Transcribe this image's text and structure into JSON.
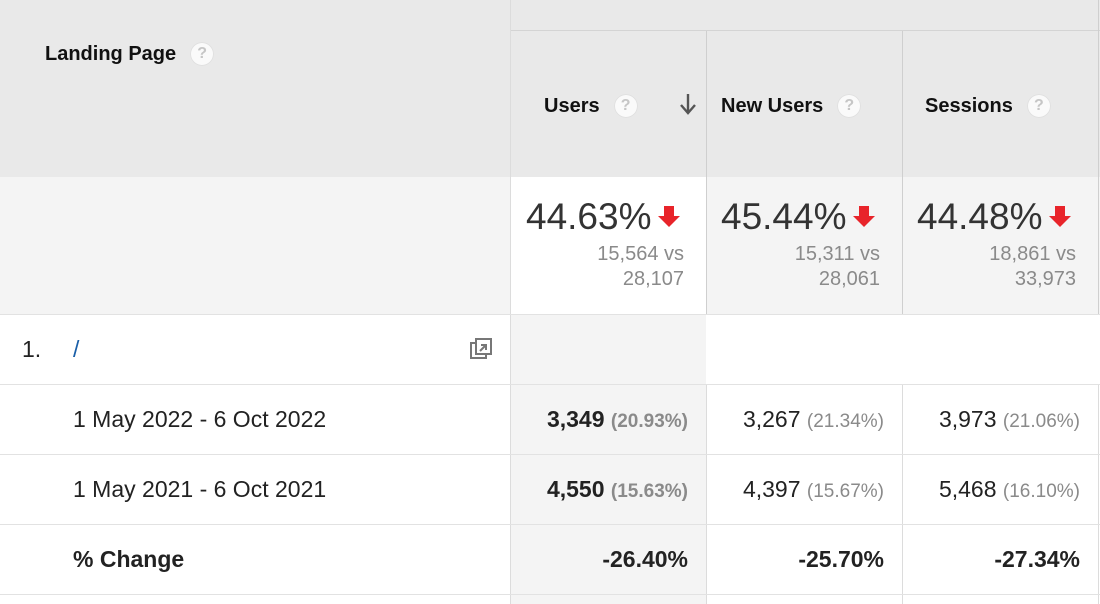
{
  "header": {
    "landing_page_label": "Landing Page",
    "help_glyph": "?",
    "columns": [
      {
        "label": "Users"
      },
      {
        "label": "New Users"
      },
      {
        "label": "Sessions"
      }
    ],
    "sort_icon": "arrow-down-icon"
  },
  "summary": [
    {
      "pct": "44.63%",
      "vs_line1": "15,564 vs",
      "vs_line2": "28,107"
    },
    {
      "pct": "45.44%",
      "vs_line1": "15,311 vs",
      "vs_line2": "28,061"
    },
    {
      "pct": "44.48%",
      "vs_line1": "18,861 vs",
      "vs_line2": "33,973"
    }
  ],
  "row": {
    "index": "1.",
    "page": "/",
    "open_icon": "open-in-new-icon"
  },
  "periods": [
    {
      "label": "1 May 2022 - 6 Oct 2022",
      "values": [
        {
          "value": "3,349",
          "share": "(20.93%)"
        },
        {
          "value": "3,267",
          "share": "(21.34%)"
        },
        {
          "value": "3,973",
          "share": "(21.06%)"
        }
      ]
    },
    {
      "label": "1 May 2021 - 6 Oct 2021",
      "values": [
        {
          "value": "4,550",
          "share": "(15.63%)"
        },
        {
          "value": "4,397",
          "share": "(15.67%)"
        },
        {
          "value": "5,468",
          "share": "(16.10%)"
        }
      ]
    }
  ],
  "change": {
    "label": "% Change",
    "values": [
      "-26.40%",
      "-25.70%",
      "-27.34%"
    ]
  },
  "colors": {
    "header_bg": "#e9e9e9",
    "sorted_col_bg": "#f4f4f4",
    "down_arrow": "#e8242a",
    "link": "#1a5fa8"
  }
}
